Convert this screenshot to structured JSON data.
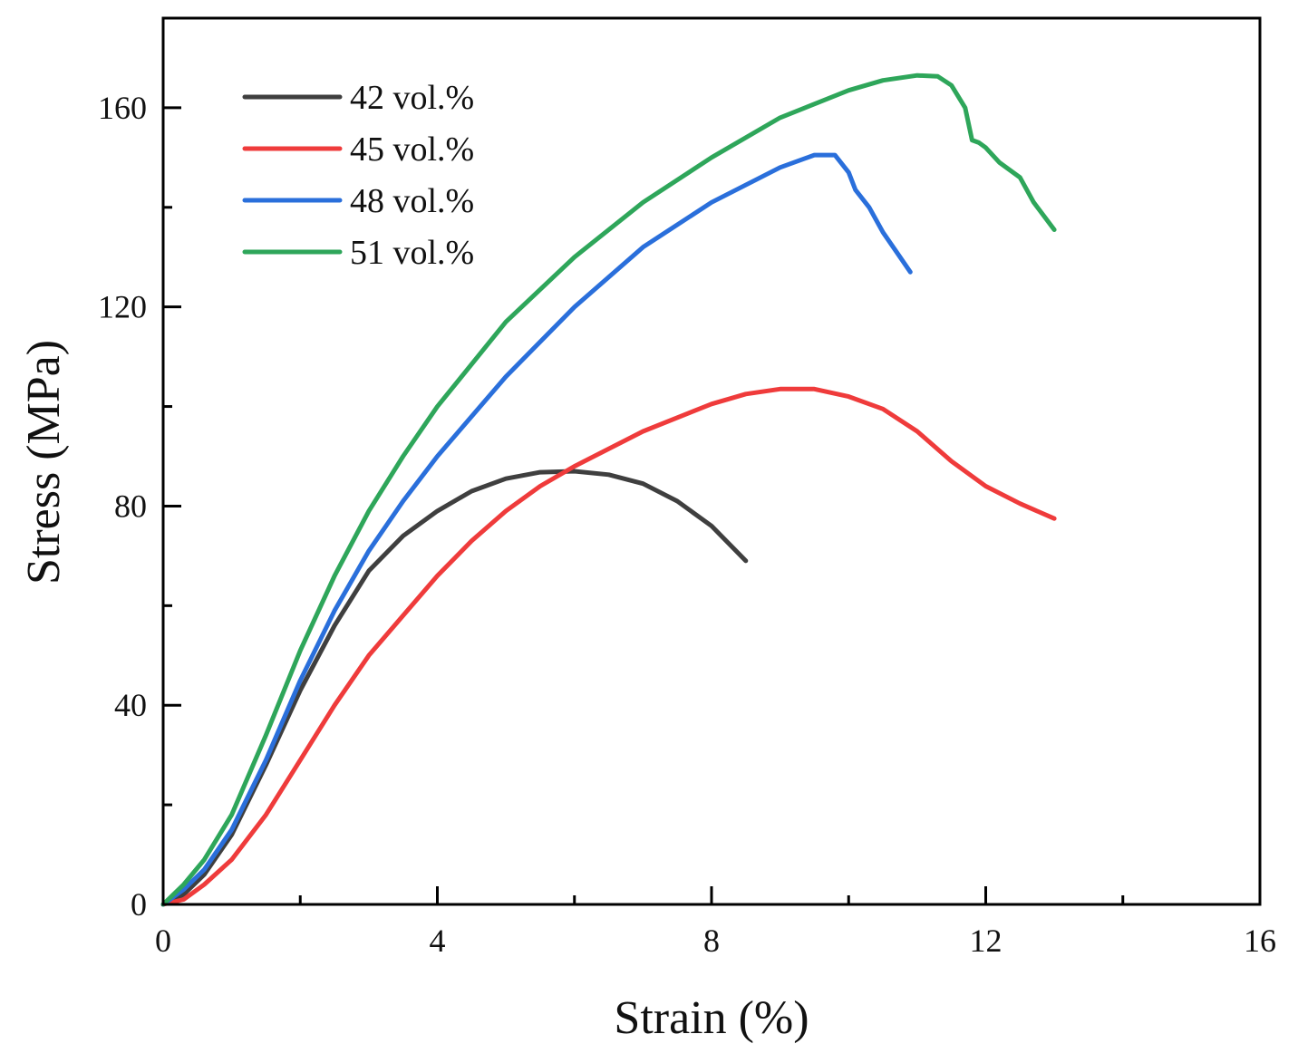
{
  "chart_data": {
    "type": "line",
    "title": "",
    "xlabel": "Strain (%)",
    "ylabel": "Stress (MPa)",
    "xlim": [
      0,
      16
    ],
    "ylim": [
      0,
      178
    ],
    "xticks": [
      0,
      4,
      8,
      12,
      16
    ],
    "yticks": [
      0,
      40,
      80,
      120,
      160
    ],
    "x_minor_ticks": [
      2,
      6,
      10,
      14
    ],
    "y_minor_ticks": [
      20,
      60,
      100,
      140
    ],
    "grid": false,
    "legend_position": "top-left",
    "series": [
      {
        "name": "42 vol.%",
        "color": "#3f3f3f",
        "x": [
          0,
          0.3,
          0.6,
          1.0,
          1.5,
          2.0,
          2.5,
          3.0,
          3.5,
          4.0,
          4.5,
          5.0,
          5.5,
          6.0,
          6.5,
          7.0,
          7.5,
          8.0,
          8.5
        ],
        "y": [
          0,
          2,
          6,
          14,
          28,
          43,
          56,
          67,
          74,
          79,
          83,
          85.5,
          86.8,
          87,
          86.3,
          84.5,
          81,
          76,
          69
        ]
      },
      {
        "name": "45 vol.%",
        "color": "#ef3b3b",
        "x": [
          0,
          0.3,
          0.6,
          1.0,
          1.5,
          2.0,
          2.5,
          3.0,
          3.5,
          4.0,
          4.5,
          5.0,
          5.5,
          6.0,
          7.0,
          8.0,
          8.5,
          9.0,
          9.5,
          10.0,
          10.5,
          11.0,
          11.5,
          12.0,
          12.5,
          13.0
        ],
        "y": [
          0,
          1,
          4,
          9,
          18,
          29,
          40,
          50,
          58,
          66,
          73,
          79,
          84,
          88,
          95,
          100.5,
          102.5,
          103.5,
          103.5,
          102,
          99.5,
          95,
          89,
          84,
          80.5,
          77.5
        ]
      },
      {
        "name": "48 vol.%",
        "color": "#2a6fdb",
        "x": [
          0,
          0.3,
          0.6,
          1.0,
          1.5,
          2.0,
          2.5,
          3.0,
          3.5,
          4.0,
          5.0,
          6.0,
          7.0,
          8.0,
          9.0,
          9.5,
          9.8,
          10.0,
          10.1,
          10.3,
          10.5,
          10.7,
          10.9
        ],
        "y": [
          0,
          3,
          7,
          15,
          29,
          45,
          59,
          71,
          81,
          90,
          106,
          120,
          132,
          141,
          148,
          150.5,
          150.5,
          147,
          143.5,
          140,
          135,
          131,
          127
        ]
      },
      {
        "name": "51 vol.%",
        "color": "#2ea65a",
        "x": [
          0,
          0.3,
          0.6,
          1.0,
          1.5,
          2.0,
          2.5,
          3.0,
          3.5,
          4.0,
          5.0,
          6.0,
          7.0,
          8.0,
          9.0,
          10.0,
          10.5,
          11.0,
          11.3,
          11.5,
          11.7,
          11.8,
          11.9,
          12.0,
          12.2,
          12.5,
          12.7,
          13.0
        ],
        "y": [
          0,
          4,
          9,
          18,
          34,
          51,
          66,
          79,
          90,
          100,
          117,
          130,
          141,
          150,
          158,
          163.5,
          165.5,
          166.5,
          166.3,
          164.5,
          160,
          153.5,
          153,
          152,
          149,
          146,
          141,
          135.5
        ]
      }
    ]
  }
}
